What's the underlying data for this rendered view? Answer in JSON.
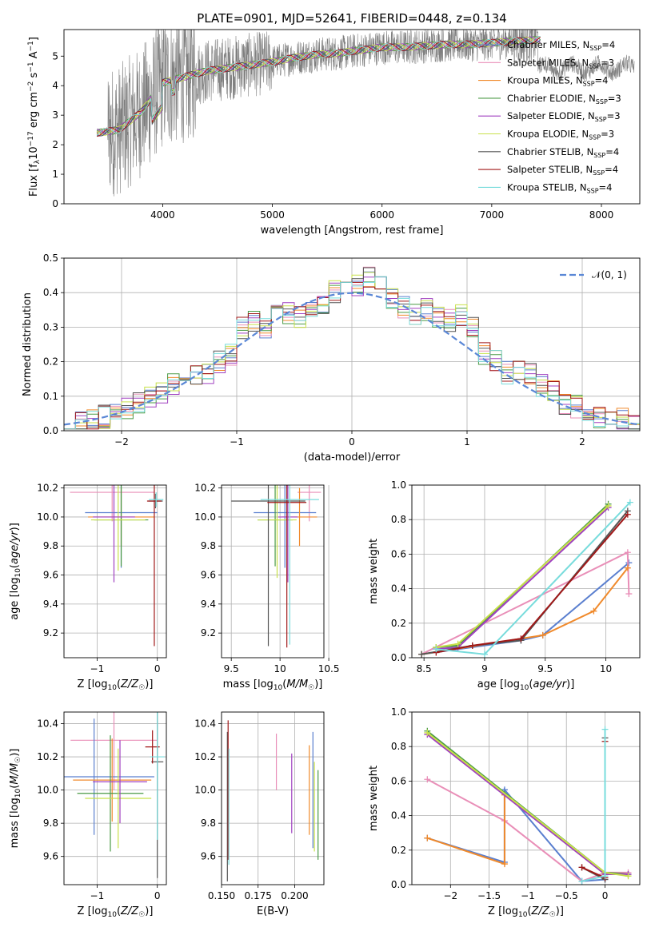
{
  "figure": {
    "title": "PLATE=0901, MJD=52641, FIBERID=0448, z=0.134"
  },
  "colors": {
    "Chabrier MILES": "#5a7fcf",
    "Salpeter MILES": "#e98fb8",
    "Kroupa MILES": "#f08a2c",
    "Chabrier ELODIE": "#4a9a45",
    "Salpeter ELODIE": "#a040c0",
    "Kroupa ELODIE": "#c8e04a",
    "Chabrier STELIB": "#555555",
    "Salpeter STELIB": "#a01818",
    "Kroupa STELIB": "#78dcdc",
    "data": "#7f7f7f",
    "normal": "#5a87d6"
  },
  "chart_data": [
    {
      "id": "spectrum",
      "type": "line",
      "title": "PLATE=0901, MJD=52641, FIBERID=0448, z=0.134",
      "xlabel": "wavelength [Angstrom, rest frame]",
      "ylabel": "Flux [f_λ 10^-17 erg cm^-2 s^-1 A^-1]",
      "xlim": [
        3100,
        8350
      ],
      "ylim": [
        0,
        5.9
      ],
      "xticks": [
        4000,
        5000,
        6000,
        7000,
        8000
      ],
      "yticks": [
        0,
        1,
        2,
        3,
        4,
        5
      ],
      "grid": false,
      "legend_position": "right",
      "series": [
        {
          "name": "Chabrier MILES, N_SSP=4"
        },
        {
          "name": "Salpeter MILES, N_SSP=3"
        },
        {
          "name": "Kroupa MILES, N_SSP=4"
        },
        {
          "name": "Chabrier ELODIE, N_SSP=3"
        },
        {
          "name": "Salpeter ELODIE, N_SSP=3"
        },
        {
          "name": "Kroupa ELODIE, N_SSP=3"
        },
        {
          "name": "Chabrier STELIB, N_SSP=4"
        },
        {
          "name": "Salpeter STELIB, N_SSP=4"
        },
        {
          "name": "Kroupa STELIB, N_SSP=4"
        }
      ],
      "continuum": {
        "x": [
          3400,
          3600,
          3800,
          3900,
          4000,
          4200,
          4400,
          4600,
          4800,
          5000,
          5200,
          5400,
          5600,
          5800,
          6000,
          6200,
          6400,
          6600,
          6800,
          7000,
          7200,
          7400
        ],
        "y": [
          2.4,
          2.5,
          3.1,
          3.6,
          4.1,
          4.3,
          4.5,
          4.6,
          4.7,
          4.8,
          4.95,
          5.05,
          5.1,
          5.2,
          5.3,
          5.3,
          5.35,
          5.4,
          5.4,
          5.45,
          5.5,
          5.55
        ]
      }
    },
    {
      "id": "residuals",
      "type": "histogram",
      "xlabel": "(data-model)/error",
      "ylabel": "Normed distribution",
      "xlim": [
        -2.5,
        2.5
      ],
      "ylim": [
        0,
        0.5
      ],
      "xticks": [
        -2,
        -1,
        0,
        1,
        2
      ],
      "yticks": [
        0.0,
        0.1,
        0.2,
        0.3,
        0.4,
        0.5
      ],
      "grid": true,
      "legend_position": "top-right",
      "legend_label": "N(0,1)",
      "bin_width": 0.1,
      "base_profile": [
        0.02,
        0.025,
        0.03,
        0.04,
        0.06,
        0.065,
        0.075,
        0.1,
        0.11,
        0.13,
        0.14,
        0.16,
        0.17,
        0.2,
        0.22,
        0.3,
        0.32,
        0.3,
        0.35,
        0.34,
        0.33,
        0.35,
        0.37,
        0.4,
        0.4,
        0.42,
        0.45,
        0.44,
        0.38,
        0.36,
        0.34,
        0.35,
        0.33,
        0.32,
        0.33,
        0.3,
        0.22,
        0.2,
        0.17,
        0.18,
        0.16,
        0.13,
        0.12,
        0.08,
        0.07,
        0.06,
        0.04,
        0.04,
        0.03,
        0.025
      ]
    },
    {
      "id": "age-vs-Z",
      "type": "errorbar",
      "xlabel": "Z [log10(Z/Z☉)]",
      "ylabel": "age  [log10(age/yr)]",
      "xlim": [
        -1.55,
        0.15
      ],
      "ylim": [
        9.03,
        10.22
      ],
      "xticks": [
        -1,
        0
      ],
      "yticks": [
        9.2,
        9.4,
        9.6,
        9.8,
        10.0,
        10.2
      ],
      "grid": true,
      "points": [
        {
          "model": "Salpeter MILES",
          "x": -0.75,
          "xerr": 0.7,
          "y": 10.17,
          "yerr": 0.2
        },
        {
          "model": "Chabrier MILES",
          "x": -0.6,
          "xerr": 0.6,
          "y": 10.03,
          "yerr": 0.38
        },
        {
          "model": "Kroupa MILES",
          "x": -0.6,
          "xerr": 0.55,
          "y": 10.0,
          "yerr": 0.2
        },
        {
          "model": "Chabrier ELODIE",
          "x": -0.6,
          "xerr": 0.45,
          "y": 9.98,
          "yerr": 0.32
        },
        {
          "model": "Kroupa ELODIE",
          "x": -0.65,
          "xerr": 0.45,
          "y": 9.98,
          "yerr": 0.35
        },
        {
          "model": "Salpeter ELODIE",
          "x": -0.72,
          "xerr": 0.35,
          "y": 10.0,
          "yerr": 0.45
        },
        {
          "model": "Chabrier STELIB",
          "x": -0.03,
          "xerr": 0.12,
          "y": 10.11,
          "yerr": 0.05
        },
        {
          "model": "Salpeter STELIB",
          "x": -0.05,
          "xerr": 0.12,
          "y": 10.11,
          "yerr": 1.0
        },
        {
          "model": "Kroupa STELIB",
          "x": -0.02,
          "xerr": 0.12,
          "y": 10.12,
          "yerr": 0.05
        }
      ]
    },
    {
      "id": "age-vs-mass",
      "type": "errorbar",
      "xlabel": "mass [log10(M/M☉)]",
      "ylabel": "",
      "xlim": [
        9.4,
        10.45
      ],
      "ylim": [
        9.03,
        10.22
      ],
      "xticks": [
        9.5,
        10.0,
        10.5
      ],
      "yticks": [
        9.2,
        9.4,
        9.6,
        9.8,
        10.0,
        10.2
      ],
      "grid": true,
      "points": [
        {
          "model": "Salpeter MILES",
          "x": 10.3,
          "xerr": 0.12,
          "y": 10.17,
          "yerr": 0.2
        },
        {
          "model": "Chabrier MILES",
          "x": 10.05,
          "xerr": 0.32,
          "y": 10.03,
          "yerr": 0.38
        },
        {
          "model": "Kroupa MILES",
          "x": 10.2,
          "xerr": 0.18,
          "y": 10.0,
          "yerr": 0.2
        },
        {
          "model": "Chabrier ELODIE",
          "x": 9.95,
          "xerr": 0.18,
          "y": 9.98,
          "yerr": 0.32
        },
        {
          "model": "Kroupa ELODIE",
          "x": 9.97,
          "xerr": 0.2,
          "y": 9.98,
          "yerr": 0.4
        },
        {
          "model": "Salpeter ELODIE",
          "x": 10.08,
          "xerr": 0.1,
          "y": 10.0,
          "yerr": 0.45
        },
        {
          "model": "Chabrier STELIB",
          "x": 9.88,
          "xerr": 0.38,
          "y": 10.11,
          "yerr": 1.0
        },
        {
          "model": "Salpeter STELIB",
          "x": 10.07,
          "xerr": 0.2,
          "y": 10.1,
          "yerr": 1.0
        },
        {
          "model": "Kroupa STELIB",
          "x": 10.1,
          "xerr": 0.3,
          "y": 10.12,
          "yerr": 1.0
        }
      ]
    },
    {
      "id": "mass-weight-vs-age",
      "type": "line",
      "xlabel": "age  [log10(age/yr)]",
      "ylabel": "mass weight",
      "xlim": [
        8.4,
        10.28
      ],
      "ylim": [
        0,
        1.0
      ],
      "xticks": [
        8.5,
        9.0,
        9.5,
        10.0
      ],
      "yticks": [
        0.0,
        0.2,
        0.4,
        0.6,
        0.8,
        1.0
      ],
      "grid": true,
      "series": [
        {
          "model": "Chabrier MILES",
          "x": [
            8.48,
            9.3,
            9.48,
            10.19
          ],
          "y": [
            0.02,
            0.1,
            0.13,
            0.55
          ]
        },
        {
          "model": "Salpeter MILES",
          "x": [
            8.48,
            10.18,
            10.19
          ],
          "y": [
            0.02,
            0.61,
            0.37
          ]
        },
        {
          "model": "Kroupa MILES",
          "x": [
            8.48,
            9.48,
            9.9,
            10.18
          ],
          "y": [
            0.02,
            0.13,
            0.27,
            0.52
          ]
        },
        {
          "model": "Chabrier ELODIE",
          "x": [
            8.6,
            8.78,
            10.02
          ],
          "y": [
            0.06,
            0.07,
            0.89
          ]
        },
        {
          "model": "Salpeter ELODIE",
          "x": [
            8.6,
            8.78,
            10.02
          ],
          "y": [
            0.05,
            0.06,
            0.87
          ]
        },
        {
          "model": "Kroupa ELODIE",
          "x": [
            8.6,
            8.78,
            10.02
          ],
          "y": [
            0.06,
            0.08,
            0.88
          ]
        },
        {
          "model": "Chabrier STELIB",
          "x": [
            8.48,
            8.9,
            9.3,
            10.18
          ],
          "y": [
            0.02,
            0.07,
            0.1,
            0.85
          ]
        },
        {
          "model": "Salpeter STELIB",
          "x": [
            8.6,
            8.9,
            9.3,
            10.18
          ],
          "y": [
            0.03,
            0.07,
            0.11,
            0.83
          ]
        },
        {
          "model": "Kroupa STELIB",
          "x": [
            8.6,
            9.0,
            10.2
          ],
          "y": [
            0.05,
            0.02,
            0.9
          ]
        }
      ]
    },
    {
      "id": "mass-vs-Z",
      "type": "errorbar",
      "xlabel": "Z [log10(Z/Z☉)]",
      "ylabel": "mass [log10(M/M☉)]",
      "xlim": [
        -1.55,
        0.15
      ],
      "ylim": [
        9.43,
        10.47
      ],
      "xticks": [
        -1,
        0
      ],
      "yticks": [
        9.6,
        9.8,
        10.0,
        10.2,
        10.4
      ],
      "grid": true,
      "points": [
        {
          "model": "Salpeter MILES",
          "x": -0.72,
          "xerr": 0.72,
          "y": 10.3,
          "yerr": 0.3
        },
        {
          "model": "Chabrier MILES",
          "x": -1.05,
          "xerr": 1.0,
          "y": 10.08,
          "yerr": 0.35
        },
        {
          "model": "Kroupa MILES",
          "x": -0.75,
          "xerr": 0.65,
          "y": 10.06,
          "yerr": 0.25
        },
        {
          "model": "Chabrier ELODIE",
          "x": -0.78,
          "xerr": 0.55,
          "y": 9.98,
          "yerr": 0.35
        },
        {
          "model": "Kroupa ELODIE",
          "x": -0.65,
          "xerr": 0.55,
          "y": 9.95,
          "yerr": 0.3
        },
        {
          "model": "Salpeter ELODIE",
          "x": -0.62,
          "xerr": 0.45,
          "y": 10.05,
          "yerr": 0.25
        },
        {
          "model": "Chabrier STELIB",
          "x": 0.0,
          "xerr": 0.1,
          "y": 10.17,
          "yerr": 0.7
        },
        {
          "model": "Salpeter STELIB",
          "x": -0.08,
          "xerr": 0.12,
          "y": 10.26,
          "yerr": 0.1
        },
        {
          "model": "Kroupa STELIB",
          "x": 0.0,
          "xerr": 0.12,
          "y": 10.2,
          "yerr": 0.5
        }
      ]
    },
    {
      "id": "mass-vs-EBV",
      "type": "errorbar",
      "xlabel": "E(B-V)",
      "ylabel": "",
      "xlim": [
        0.15,
        0.22
      ],
      "ylim": [
        9.43,
        10.47
      ],
      "xticks": [
        0.15,
        0.175,
        0.2
      ],
      "xtick_labels": [
        "0.150",
        "0.175",
        "0.200"
      ],
      "yticks": [
        9.6,
        9.8,
        10.0,
        10.2,
        10.4
      ],
      "grid": true,
      "points": [
        {
          "model": "Chabrier STELIB",
          "x": 0.154,
          "y": 9.9,
          "yerr": 0.45
        },
        {
          "model": "Salpeter STELIB",
          "x": 0.1545,
          "y": 10.0,
          "yerr": 0.42
        },
        {
          "model": "Kroupa STELIB",
          "x": 0.155,
          "y": 9.9,
          "yerr": 0.35
        },
        {
          "model": "Salpeter MILES",
          "x": 0.1875,
          "y": 10.17,
          "yerr": 0.17
        },
        {
          "model": "Salpeter ELODIE",
          "x": 0.198,
          "y": 9.98,
          "yerr": 0.24
        },
        {
          "model": "Kroupa MILES",
          "x": 0.21,
          "y": 10.0,
          "yerr": 0.27
        },
        {
          "model": "Chabrier MILES",
          "x": 0.2125,
          "y": 10.0,
          "yerr": 0.35
        },
        {
          "model": "Kroupa ELODIE",
          "x": 0.2135,
          "y": 9.9,
          "yerr": 0.27
        },
        {
          "model": "Chabrier ELODIE",
          "x": 0.216,
          "y": 9.85,
          "yerr": 0.27
        }
      ]
    },
    {
      "id": "mass-weight-vs-Z",
      "type": "line",
      "xlabel": "Z [log10(Z/Z☉)]",
      "ylabel": "mass weight",
      "xlim": [
        -2.5,
        0.45
      ],
      "ylim": [
        0,
        1.0
      ],
      "xticks": [
        -2.0,
        -1.5,
        -1.0,
        -0.5,
        0.0
      ],
      "yticks": [
        0.0,
        0.2,
        0.4,
        0.6,
        0.8,
        1.0
      ],
      "grid": true,
      "series": [
        {
          "model": "Chabrier MILES",
          "x": [
            -2.3,
            -1.3,
            -1.3,
            -0.3,
            0.0
          ],
          "y": [
            0.27,
            0.13,
            0.55,
            0.02,
            0.03
          ]
        },
        {
          "model": "Salpeter MILES",
          "x": [
            -2.3,
            -1.3,
            -0.3,
            0.0,
            0.3
          ],
          "y": [
            0.61,
            0.37,
            0.02,
            0.07,
            0.07
          ]
        },
        {
          "model": "Kroupa MILES",
          "x": [
            -2.3,
            -1.3,
            -1.3,
            0.0,
            0.0
          ],
          "y": [
            0.27,
            0.12,
            0.52,
            0.06,
            0.06
          ]
        },
        {
          "model": "Chabrier ELODIE",
          "x": [
            -2.3,
            0.0,
            0.3
          ],
          "y": [
            0.89,
            0.07,
            0.06
          ]
        },
        {
          "model": "Salpeter ELODIE",
          "x": [
            -2.3,
            0.0,
            0.3
          ],
          "y": [
            0.87,
            0.06,
            0.06
          ]
        },
        {
          "model": "Kroupa ELODIE",
          "x": [
            -2.3,
            0.0,
            0.3
          ],
          "y": [
            0.88,
            0.07,
            0.05
          ]
        },
        {
          "model": "Chabrier STELIB",
          "x": [
            -0.3,
            0.0,
            0.0
          ],
          "y": [
            0.1,
            0.03,
            0.85
          ]
        },
        {
          "model": "Salpeter STELIB",
          "x": [
            -0.3,
            0.0,
            0.0
          ],
          "y": [
            0.1,
            0.04,
            0.83
          ]
        },
        {
          "model": "Kroupa STELIB",
          "x": [
            -0.3,
            0.0,
            0.0
          ],
          "y": [
            0.02,
            0.05,
            0.9
          ]
        }
      ]
    }
  ]
}
